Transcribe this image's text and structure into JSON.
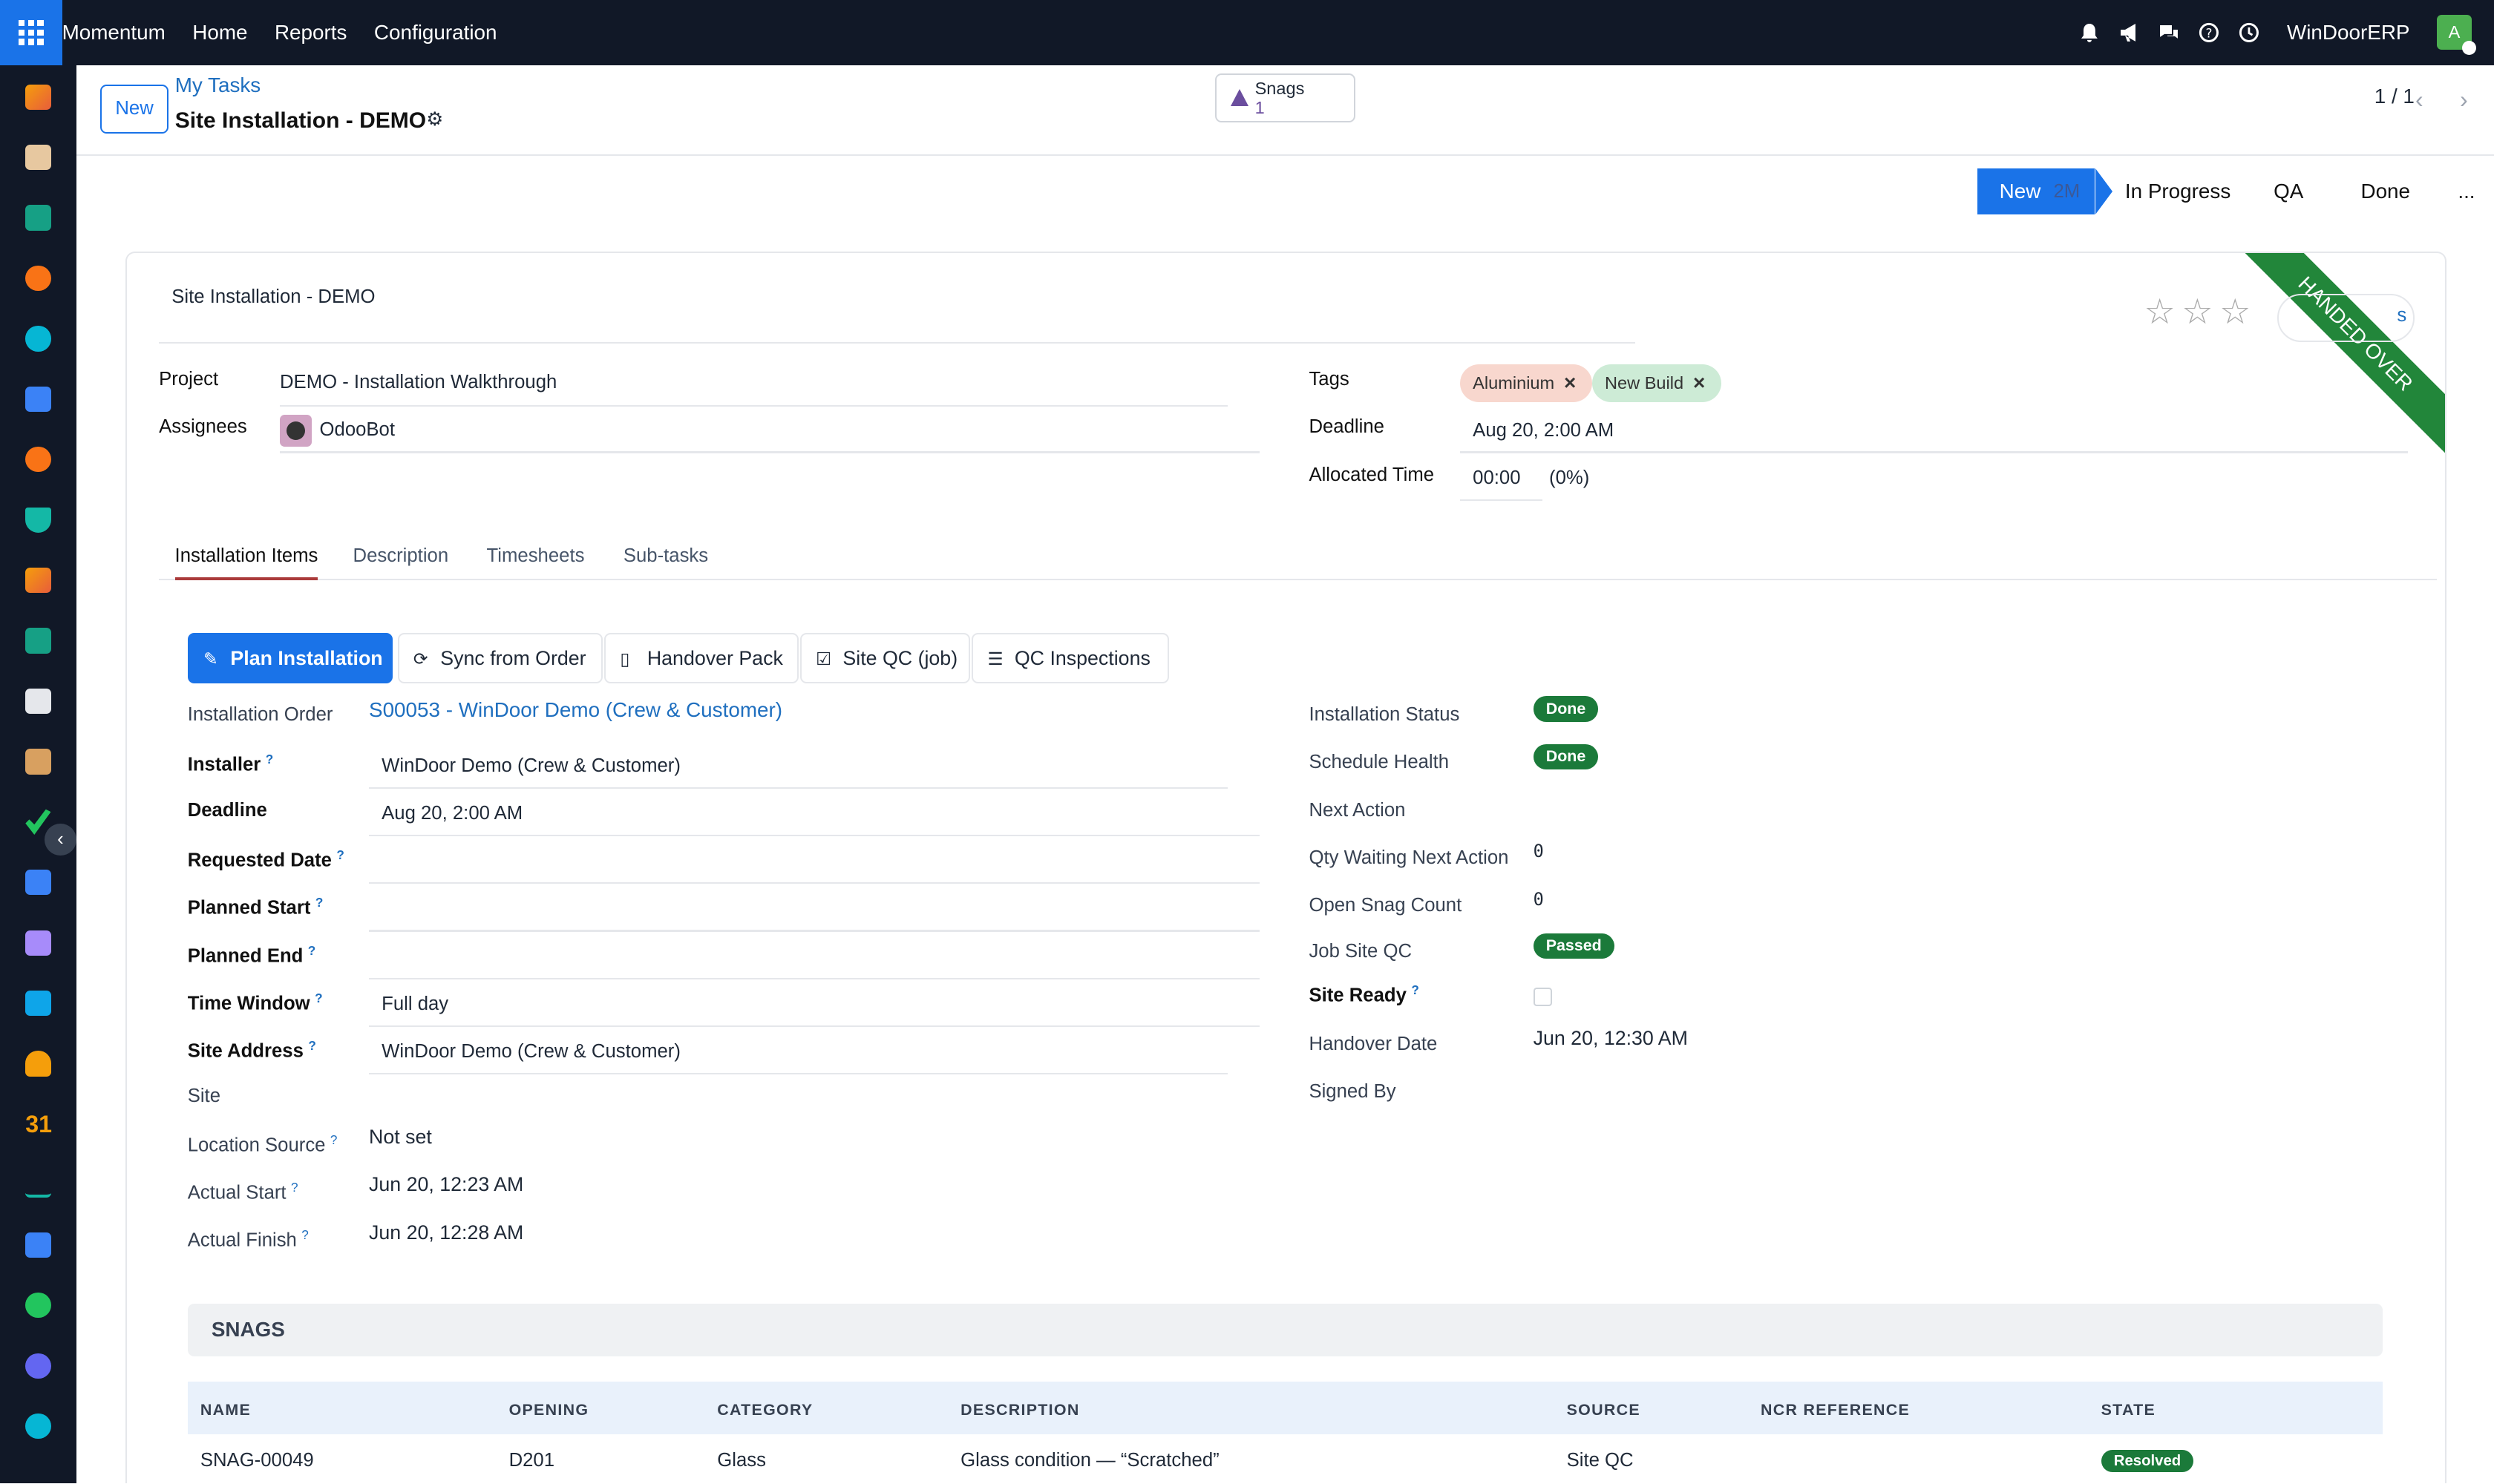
{
  "topbar": {
    "brand": "Momentum",
    "nav": [
      "Home",
      "Reports",
      "Configuration"
    ],
    "company": "WinDoorERP",
    "avatar_letter": "A"
  },
  "breadcrumb": {
    "new_button": "New",
    "parent": "My Tasks",
    "title": "Site Installation - DEMO"
  },
  "smart_button": {
    "label": "Snags",
    "count": "1"
  },
  "pager": {
    "value": "1 / 1"
  },
  "stages": {
    "active": "New",
    "active_duration": "2M",
    "others": [
      "In Progress",
      "QA",
      "Done",
      "..."
    ]
  },
  "ribbon": "HANDED OVER",
  "task": {
    "name": "Site Installation - DEMO",
    "project_label": "Project",
    "project": "DEMO - Installation Walkthrough",
    "assignees_label": "Assignees",
    "assignee": "OdooBot",
    "tags_label": "Tags",
    "tags": [
      "Aluminium",
      "New Build"
    ],
    "deadline_label": "Deadline",
    "deadline": "Aug 20, 2:00 AM",
    "allocated_label": "Allocated Time",
    "allocated": "00:00",
    "allocated_pct": "(0%)",
    "ghost_button_text": "s"
  },
  "tabs": [
    "Installation Items",
    "Description",
    "Timesheets",
    "Sub-tasks"
  ],
  "actions": [
    "Plan Installation",
    "Sync from Order",
    "Handover Pack",
    "Site QC (job)",
    "QC Inspections"
  ],
  "install": {
    "order_label": "Installation Order",
    "order": "S00053 - WinDoor Demo (Crew & Customer)",
    "installer_label": "Installer",
    "installer": "WinDoor Demo (Crew & Customer)",
    "deadline_label": "Deadline",
    "deadline": "Aug 20, 2:00 AM",
    "requested_label": "Requested Date",
    "planned_start_label": "Planned Start",
    "planned_end_label": "Planned End",
    "time_window_label": "Time Window",
    "time_window": "Full day",
    "site_address_label": "Site Address",
    "site_address": "WinDoor Demo (Crew & Customer)",
    "site_label": "Site",
    "location_source_label": "Location Source",
    "location_source": "Not set",
    "actual_start_label": "Actual Start",
    "actual_start": "Jun 20, 12:23 AM",
    "actual_finish_label": "Actual Finish",
    "actual_finish": "Jun 20, 12:28 AM",
    "q": "?"
  },
  "status": {
    "install_status_label": "Installation Status",
    "install_status": "Done",
    "schedule_health_label": "Schedule Health",
    "schedule_health": "Done",
    "next_action_label": "Next Action",
    "qty_waiting_label": "Qty Waiting Next Action",
    "qty_waiting": "0",
    "open_snag_label": "Open Snag Count",
    "open_snag": "0",
    "job_qc_label": "Job Site QC",
    "job_qc": "Passed",
    "site_ready_label": "Site Ready",
    "handover_label": "Handover Date",
    "handover": "Jun 20, 12:30 AM",
    "signed_by_label": "Signed By",
    "badge_color": "#1b7a3a"
  },
  "snags": {
    "heading": "SNAGS",
    "columns": [
      "NAME",
      "OPENING",
      "CATEGORY",
      "DESCRIPTION",
      "SOURCE",
      "NCR REFERENCE",
      "STATE"
    ],
    "rows": [
      {
        "name": "SNAG-00049",
        "opening": "D201",
        "category": "Glass",
        "description": "Glass condition — “Scratched”",
        "source": "Site QC",
        "ncr": "",
        "state": "Resolved"
      }
    ]
  },
  "colors": {
    "primary": "#1a73e8",
    "topbar": "#111827",
    "ribbon": "#22863a"
  }
}
